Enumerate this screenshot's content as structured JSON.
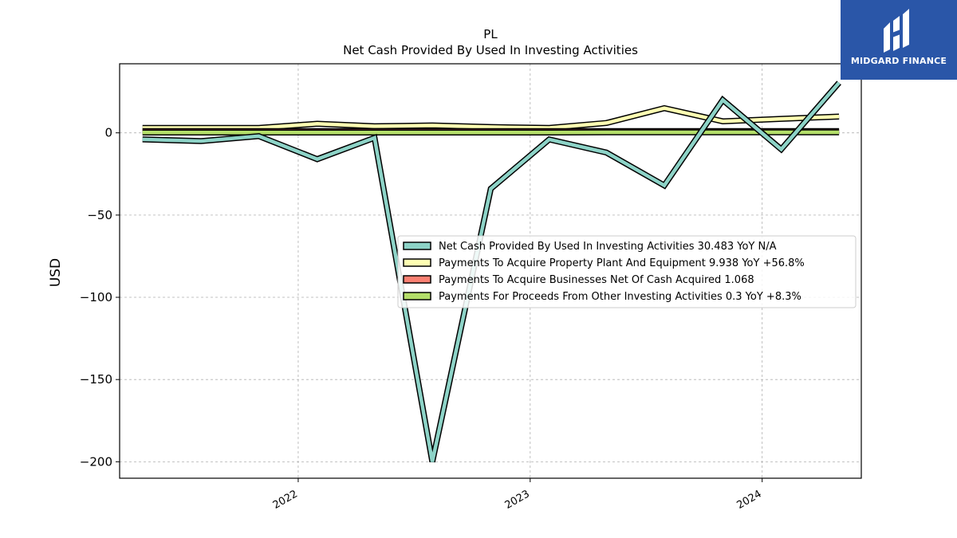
{
  "logo": {
    "text": "MIDGARD FINANCE",
    "icon": "midgard-logo-icon",
    "background": "#2a56a8"
  },
  "chart_data": {
    "type": "line",
    "title": "PL",
    "subtitle": "Net Cash Provided By Used In Investing Activities",
    "xlabel": "",
    "ylabel": "USD",
    "x": [
      "2021-05-01",
      "2021-08-01",
      "2021-10-31",
      "2022-01-31",
      "2022-05-01",
      "2022-07-31",
      "2022-10-31",
      "2023-01-31",
      "2023-05-01",
      "2023-07-31",
      "2023-10-31",
      "2024-01-31",
      "2024-05-01"
    ],
    "xlim": [
      "2021-03-26",
      "2024-06-05"
    ],
    "ylim": [
      -210,
      42
    ],
    "x_ticks": [
      "2022",
      "2023",
      "2024"
    ],
    "y_ticks": [
      0,
      -50,
      -100,
      -150,
      -200
    ],
    "y_tick_labels": [
      "0",
      "−50",
      "−100",
      "−150",
      "−200"
    ],
    "grid": true,
    "legend_position": "center-right",
    "series": [
      {
        "name": "Net Cash Provided By Used In Investing Activities  30.483 YoY N/A",
        "color": "#8dd3c7",
        "values": [
          -4,
          -5,
          -2,
          -16,
          -3,
          -200,
          -34,
          -4,
          -12,
          -32,
          20,
          -10,
          30.483
        ]
      },
      {
        "name": "Payments To Acquire Property Plant And Equipment  9.938 YoY +56.8%",
        "color": "#ffffb3",
        "values": [
          3,
          3,
          3,
          5.5,
          4,
          4.5,
          3.5,
          3,
          6,
          15,
          7,
          8.5,
          9.938
        ]
      },
      {
        "name": "Payments To Acquire Businesses Net Of Cash Acquired  1.068",
        "color": "#fb8072",
        "values": [
          1.068,
          1.068,
          1.068,
          1.068,
          1.068,
          1.068,
          1.068,
          1.068,
          1.068,
          1.068,
          1.068,
          1.068,
          1.068
        ]
      },
      {
        "name": "Payments For Proceeds From Other Investing Activities  0.3 YoY +8.3%",
        "color": "#b3de69",
        "values": [
          0.2,
          0.2,
          0.2,
          0.2,
          0.2,
          0.2,
          0.2,
          0.2,
          0.3,
          0.3,
          0.3,
          0.3,
          0.3
        ]
      }
    ]
  }
}
